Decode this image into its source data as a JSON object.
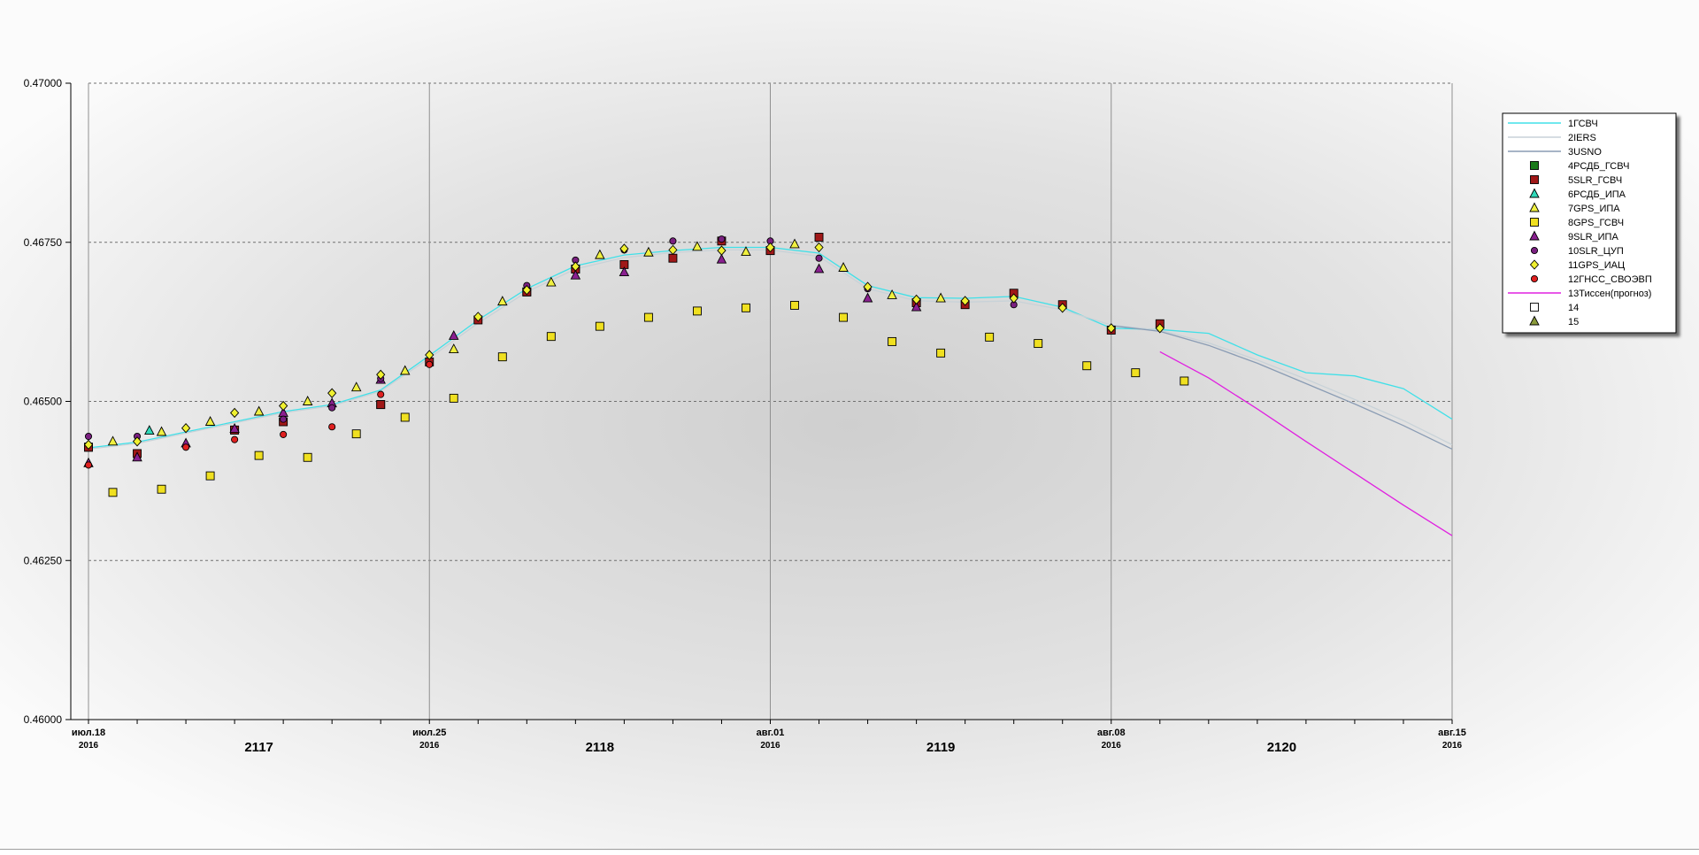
{
  "chart_data": {
    "type": "line",
    "title": "",
    "xlabel": "",
    "ylabel": "",
    "ylim": [
      0.46,
      0.47
    ],
    "xlim": [
      "2016-07-18",
      "2016-08-15"
    ],
    "y_ticks": [
      "0.46000",
      "0.46250",
      "0.46500",
      "0.46750",
      "0.47000"
    ],
    "y_tick_values": [
      0.46,
      0.4625,
      0.465,
      0.4675,
      0.47
    ],
    "x_major_ticks": [
      {
        "date": "2016-07-18",
        "label": "июл.18",
        "year": "2016"
      },
      {
        "date": "2016-07-25",
        "label": "июл.25",
        "year": "2016"
      },
      {
        "date": "2016-08-01",
        "label": "авг.01",
        "year": "2016"
      },
      {
        "date": "2016-08-08",
        "label": "авг.08",
        "year": "2016"
      },
      {
        "date": "2016-08-15",
        "label": "авг.15",
        "year": "2016"
      }
    ],
    "week_labels": [
      {
        "date": "2016-07-21T12",
        "label": "2117"
      },
      {
        "date": "2016-07-28T12",
        "label": "2118"
      },
      {
        "date": "2016-08-04T12",
        "label": "2119"
      },
      {
        "date": "2016-08-11T12",
        "label": "2120"
      }
    ],
    "grid": "dashed horizontal, solid vertical at week boundaries",
    "legend_placement": "top-right",
    "series": [
      {
        "name": "1ГСВЧ",
        "kind": "line",
        "color": "#40e0e8",
        "points": [
          [
            "2016-07-18",
            0.46427
          ],
          [
            "2016-07-19",
            0.46436
          ],
          [
            "2016-07-20",
            0.46452
          ],
          [
            "2016-07-21",
            0.46468
          ],
          [
            "2016-07-22",
            0.46484
          ],
          [
            "2016-07-23",
            0.46495
          ],
          [
            "2016-07-24",
            0.46518
          ],
          [
            "2016-07-25",
            0.46572
          ],
          [
            "2016-07-26",
            0.46628
          ],
          [
            "2016-07-27",
            0.46677
          ],
          [
            "2016-07-28",
            0.46713
          ],
          [
            "2016-07-29",
            0.4673
          ],
          [
            "2016-07-30",
            0.46737
          ],
          [
            "2016-07-31",
            0.46742
          ],
          [
            "2016-08-01",
            0.46742
          ],
          [
            "2016-08-02",
            0.46733
          ],
          [
            "2016-08-03",
            0.46682
          ],
          [
            "2016-08-04",
            0.46663
          ],
          [
            "2016-08-05",
            0.46662
          ],
          [
            "2016-08-06",
            0.46665
          ],
          [
            "2016-08-07",
            0.46648
          ],
          [
            "2016-08-08",
            0.46615
          ],
          [
            "2016-08-09",
            0.46613
          ],
          [
            "2016-08-10",
            0.46607
          ],
          [
            "2016-08-11",
            0.46573
          ],
          [
            "2016-08-12",
            0.46545
          ],
          [
            "2016-08-13",
            0.4654
          ],
          [
            "2016-08-14",
            0.4652
          ],
          [
            "2016-08-15",
            0.46472
          ]
        ]
      },
      {
        "name": "2IERS",
        "kind": "line",
        "color": "#c8d2d8",
        "points": [
          [
            "2016-07-18",
            0.46425
          ],
          [
            "2016-07-19",
            0.46434
          ],
          [
            "2016-07-20",
            0.4645
          ],
          [
            "2016-07-21",
            0.46466
          ],
          [
            "2016-07-22",
            0.46482
          ],
          [
            "2016-07-23",
            0.46493
          ],
          [
            "2016-07-24",
            0.46516
          ],
          [
            "2016-07-25",
            0.46568
          ],
          [
            "2016-07-26",
            0.46623
          ],
          [
            "2016-07-27",
            0.46672
          ],
          [
            "2016-07-28",
            0.46708
          ],
          [
            "2016-07-29",
            0.46726
          ],
          [
            "2016-07-30",
            0.46734
          ],
          [
            "2016-07-31",
            0.46738
          ],
          [
            "2016-08-01",
            0.46738
          ],
          [
            "2016-08-02",
            0.46728
          ],
          [
            "2016-08-03",
            0.46677
          ],
          [
            "2016-08-04",
            0.46658
          ],
          [
            "2016-08-05",
            0.46656
          ],
          [
            "2016-08-06",
            0.46658
          ],
          [
            "2016-08-07",
            0.46644
          ],
          [
            "2016-08-08",
            0.4662
          ],
          [
            "2016-08-09",
            0.46612
          ],
          [
            "2016-08-10",
            0.46592
          ],
          [
            "2016-08-11",
            0.46565
          ],
          [
            "2016-08-12",
            0.46535
          ],
          [
            "2016-08-13",
            0.46503
          ],
          [
            "2016-08-14",
            0.4647
          ],
          [
            "2016-08-15",
            0.46432
          ]
        ]
      },
      {
        "name": "3USNO",
        "kind": "line",
        "color": "#8a9cb4",
        "points": [
          [
            "2016-08-08",
            0.46619
          ],
          [
            "2016-08-09",
            0.4661
          ],
          [
            "2016-08-10",
            0.46588
          ],
          [
            "2016-08-11",
            0.4656
          ],
          [
            "2016-08-12",
            0.46528
          ],
          [
            "2016-08-13",
            0.46496
          ],
          [
            "2016-08-14",
            0.46462
          ],
          [
            "2016-08-15",
            0.46425
          ]
        ]
      },
      {
        "name": "4РСДБ_ГСВЧ",
        "kind": "marker",
        "shape": "square",
        "color": "#1a7a1a",
        "points": [
          [
            "2016-07-18",
            0.46428
          ],
          [
            "2016-07-21",
            0.46455
          ],
          [
            "2016-07-24",
            0.46495
          ],
          [
            "2016-07-27",
            0.46672
          ],
          [
            "2016-07-28",
            0.46708
          ],
          [
            "2016-08-01",
            0.46737
          ],
          [
            "2016-08-04",
            0.46655
          ]
        ]
      },
      {
        "name": "5SLR_ГСВЧ",
        "kind": "marker",
        "shape": "square",
        "color": "#a01818",
        "points": [
          [
            "2016-07-18",
            0.46428
          ],
          [
            "2016-07-19",
            0.46418
          ],
          [
            "2016-07-21",
            0.46455
          ],
          [
            "2016-07-22",
            0.46468
          ],
          [
            "2016-07-24",
            0.46495
          ],
          [
            "2016-07-25",
            0.46562
          ],
          [
            "2016-07-26",
            0.46628
          ],
          [
            "2016-07-27",
            0.46672
          ],
          [
            "2016-07-28",
            0.46708
          ],
          [
            "2016-07-29",
            0.46715
          ],
          [
            "2016-07-30",
            0.46725
          ],
          [
            "2016-07-31",
            0.46752
          ],
          [
            "2016-08-01",
            0.46737
          ],
          [
            "2016-08-02",
            0.46758
          ],
          [
            "2016-08-04",
            0.46655
          ],
          [
            "2016-08-05",
            0.46652
          ],
          [
            "2016-08-06",
            0.4667
          ],
          [
            "2016-08-07",
            0.46652
          ],
          [
            "2016-08-08",
            0.46612
          ],
          [
            "2016-08-09",
            0.46622
          ]
        ]
      },
      {
        "name": "6РСДБ_ИПА",
        "kind": "marker",
        "shape": "triangle",
        "color": "#30d8b8",
        "points": [
          [
            "2016-07-19T06",
            0.46454
          ]
        ]
      },
      {
        "name": "7GPS_ИПА",
        "kind": "marker",
        "shape": "triangle",
        "color": "#f0f040",
        "points": [
          [
            "2016-07-18T12",
            0.46437
          ],
          [
            "2016-07-19T12",
            0.46452
          ],
          [
            "2016-07-20T12",
            0.46468
          ],
          [
            "2016-07-21T12",
            0.46484
          ],
          [
            "2016-07-22T12",
            0.465
          ],
          [
            "2016-07-23T12",
            0.46522
          ],
          [
            "2016-07-24T12",
            0.46548
          ],
          [
            "2016-07-25T12",
            0.46582
          ],
          [
            "2016-07-26T12",
            0.46657
          ],
          [
            "2016-07-27T12",
            0.46687
          ],
          [
            "2016-07-28T12",
            0.4673
          ],
          [
            "2016-07-29T12",
            0.46734
          ],
          [
            "2016-07-30T12",
            0.46743
          ],
          [
            "2016-07-31T12",
            0.46735
          ],
          [
            "2016-08-01T12",
            0.46747
          ],
          [
            "2016-08-02T12",
            0.4671
          ],
          [
            "2016-08-03T12",
            0.46667
          ],
          [
            "2016-08-04T12",
            0.46662
          ]
        ]
      },
      {
        "name": "8GPS_ГСВЧ",
        "kind": "marker",
        "shape": "square",
        "color": "#f0e020",
        "points": [
          [
            "2016-07-18T12",
            0.46357
          ],
          [
            "2016-07-19T12",
            0.46362
          ],
          [
            "2016-07-20T12",
            0.46383
          ],
          [
            "2016-07-21T12",
            0.46415
          ],
          [
            "2016-07-22T12",
            0.46412
          ],
          [
            "2016-07-23T12",
            0.46449
          ],
          [
            "2016-07-24T12",
            0.46475
          ],
          [
            "2016-07-25T12",
            0.46505
          ],
          [
            "2016-07-26T12",
            0.4657
          ],
          [
            "2016-07-27T12",
            0.46602
          ],
          [
            "2016-07-28T12",
            0.46618
          ],
          [
            "2016-07-29T12",
            0.46632
          ],
          [
            "2016-07-30T12",
            0.46642
          ],
          [
            "2016-07-31T12",
            0.46647
          ],
          [
            "2016-08-01T12",
            0.46651
          ],
          [
            "2016-08-02T12",
            0.46632
          ],
          [
            "2016-08-03T12",
            0.46594
          ],
          [
            "2016-08-04T12",
            0.46576
          ],
          [
            "2016-08-05T12",
            0.46601
          ],
          [
            "2016-08-06T12",
            0.46591
          ],
          [
            "2016-08-07T12",
            0.46556
          ],
          [
            "2016-08-08T12",
            0.46545
          ],
          [
            "2016-08-09T12",
            0.46532
          ]
        ]
      },
      {
        "name": "9SLR_ИПА",
        "kind": "marker",
        "shape": "triangle",
        "color": "#8a2090",
        "points": [
          [
            "2016-07-18",
            0.46403
          ],
          [
            "2016-07-19",
            0.46412
          ],
          [
            "2016-07-20",
            0.46434
          ],
          [
            "2016-07-21",
            0.46457
          ],
          [
            "2016-07-22",
            0.46482
          ],
          [
            "2016-07-23",
            0.46497
          ],
          [
            "2016-07-24",
            0.46534
          ],
          [
            "2016-07-25T12",
            0.46603
          ],
          [
            "2016-07-28",
            0.46698
          ],
          [
            "2016-07-29",
            0.46703
          ],
          [
            "2016-07-31",
            0.46723
          ],
          [
            "2016-08-02",
            0.46708
          ],
          [
            "2016-08-03",
            0.46662
          ],
          [
            "2016-08-04",
            0.46648
          ]
        ]
      },
      {
        "name": "10SLR_ЦУП",
        "kind": "marker",
        "shape": "circle",
        "color": "#7a2080",
        "points": [
          [
            "2016-07-18",
            0.46445
          ],
          [
            "2016-07-19",
            0.46445
          ],
          [
            "2016-07-22",
            0.46472
          ],
          [
            "2016-07-23",
            0.4649
          ],
          [
            "2016-07-24",
            0.46536
          ],
          [
            "2016-07-27",
            0.46682
          ],
          [
            "2016-07-28",
            0.46722
          ],
          [
            "2016-07-29",
            0.46738
          ],
          [
            "2016-07-30",
            0.46752
          ],
          [
            "2016-07-31",
            0.46755
          ],
          [
            "2016-08-01",
            0.46752
          ],
          [
            "2016-08-02",
            0.46725
          ],
          [
            "2016-08-03",
            0.46677
          ],
          [
            "2016-08-06",
            0.46652
          ]
        ]
      },
      {
        "name": "11GPS_ИАЦ",
        "kind": "marker",
        "shape": "diamond",
        "color": "#f0f030",
        "points": [
          [
            "2016-07-18",
            0.46432
          ],
          [
            "2016-07-19",
            0.46437
          ],
          [
            "2016-07-20",
            0.46458
          ],
          [
            "2016-07-21",
            0.46482
          ],
          [
            "2016-07-22",
            0.46493
          ],
          [
            "2016-07-23",
            0.46513
          ],
          [
            "2016-07-24",
            0.46542
          ],
          [
            "2016-07-25",
            0.46573
          ],
          [
            "2016-07-26",
            0.46633
          ],
          [
            "2016-07-27",
            0.46675
          ],
          [
            "2016-07-28",
            0.46712
          ],
          [
            "2016-07-29",
            0.4674
          ],
          [
            "2016-07-30",
            0.46738
          ],
          [
            "2016-07-31",
            0.46737
          ],
          [
            "2016-08-01",
            0.46742
          ],
          [
            "2016-08-02",
            0.46742
          ],
          [
            "2016-08-03",
            0.4668
          ],
          [
            "2016-08-04",
            0.4666
          ],
          [
            "2016-08-05",
            0.46658
          ],
          [
            "2016-08-06",
            0.46662
          ],
          [
            "2016-08-07",
            0.46647
          ],
          [
            "2016-08-08",
            0.46615
          ],
          [
            "2016-08-09",
            0.46615
          ]
        ]
      },
      {
        "name": "12ГНСС_СВОЭВП",
        "kind": "marker",
        "shape": "circle",
        "color": "#e02020",
        "points": [
          [
            "2016-07-18",
            0.464
          ],
          [
            "2016-07-20",
            0.46428
          ],
          [
            "2016-07-21",
            0.4644
          ],
          [
            "2016-07-22",
            0.46448
          ],
          [
            "2016-07-23",
            0.4646
          ],
          [
            "2016-07-24",
            0.46511
          ],
          [
            "2016-07-25",
            0.46558
          ]
        ]
      },
      {
        "name": "13Тиссен(прогноз)",
        "kind": "line",
        "color": "#e020e0",
        "points": [
          [
            "2016-08-09",
            0.46578
          ],
          [
            "2016-08-10",
            0.46537
          ],
          [
            "2016-08-11",
            0.46488
          ],
          [
            "2016-08-12",
            0.46437
          ],
          [
            "2016-08-13",
            0.46387
          ],
          [
            "2016-08-14",
            0.46337
          ],
          [
            "2016-08-15",
            0.46289
          ]
        ]
      },
      {
        "name": "14",
        "kind": "marker",
        "shape": "square",
        "color": "#ffffff",
        "points": []
      },
      {
        "name": "15",
        "kind": "marker",
        "shape": "triangle",
        "color": "#8a9a3a",
        "points": []
      }
    ]
  }
}
